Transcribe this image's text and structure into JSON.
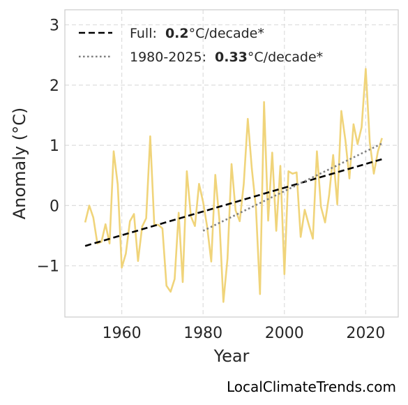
{
  "chart_data": {
    "type": "line",
    "xlabel": "Year",
    "ylabel": "Anomaly (°C)",
    "xlim": [
      1946,
      2028
    ],
    "ylim": [
      -1.85,
      3.25
    ],
    "xticks": [
      1960,
      1980,
      2000,
      2020
    ],
    "xtick_labels": [
      "1960",
      "1980",
      "2000",
      "2020"
    ],
    "yticks": [
      -1,
      0,
      1,
      2,
      3
    ],
    "ytick_labels": [
      "−1",
      "0",
      "1",
      "2",
      "3"
    ],
    "grid": true,
    "legend_placement": "top-left",
    "series": [
      {
        "style": "solid",
        "color": "#f0d47a",
        "x": [
          1951,
          1952,
          1953,
          1954,
          1955,
          1956,
          1957,
          1958,
          1959,
          1960,
          1961,
          1962,
          1963,
          1964,
          1965,
          1966,
          1967,
          1968,
          1969,
          1970,
          1971,
          1972,
          1973,
          1974,
          1975,
          1976,
          1977,
          1978,
          1979,
          1980,
          1981,
          1982,
          1983,
          1984,
          1985,
          1986,
          1987,
          1988,
          1989,
          1990,
          1991,
          1992,
          1993,
          1994,
          1995,
          1996,
          1997,
          1998,
          1999,
          2000,
          2001,
          2002,
          2003,
          2004,
          2005,
          2006,
          2007,
          2008,
          2009,
          2010,
          2011,
          2012,
          2013,
          2014,
          2015,
          2016,
          2017,
          2018,
          2019,
          2020,
          2021,
          2022,
          2023,
          2024
        ],
        "y": [
          -0.28,
          0.0,
          -0.2,
          -0.63,
          -0.6,
          -0.31,
          -0.63,
          0.9,
          0.35,
          -1.03,
          -0.8,
          -0.26,
          -0.14,
          -0.92,
          -0.35,
          -0.21,
          1.15,
          -0.32,
          -0.32,
          -0.38,
          -1.33,
          -1.43,
          -1.22,
          -0.12,
          -1.27,
          0.57,
          -0.18,
          -0.34,
          0.36,
          0.06,
          -0.35,
          -0.93,
          0.51,
          -0.23,
          -1.6,
          -0.88,
          0.69,
          -0.08,
          -0.26,
          0.36,
          1.44,
          0.61,
          -0.04,
          -1.47,
          1.72,
          -0.25,
          0.88,
          -0.42,
          0.66,
          -1.14,
          0.57,
          0.53,
          0.55,
          -0.52,
          -0.07,
          -0.32,
          -0.55,
          0.9,
          -0.02,
          -0.28,
          0.17,
          0.84,
          0.02,
          1.57,
          1.09,
          0.45,
          1.35,
          1.02,
          1.3,
          2.27,
          1.05,
          0.53,
          0.9,
          1.12
        ]
      },
      {
        "name": "Full:",
        "value": "0.2",
        "unit": "°C/decade*",
        "style": "dashed",
        "color": "#000000",
        "x": [
          1951,
          2024
        ],
        "y": [
          -0.67,
          0.77
        ]
      },
      {
        "name": "1980-2025:",
        "value": "0.33",
        "unit": "°C/decade*",
        "style": "dotted",
        "color": "#808080",
        "x": [
          1980,
          2024
        ],
        "y": [
          -0.42,
          1.03
        ]
      }
    ]
  },
  "watermark": "LocalClimateTrends.com"
}
